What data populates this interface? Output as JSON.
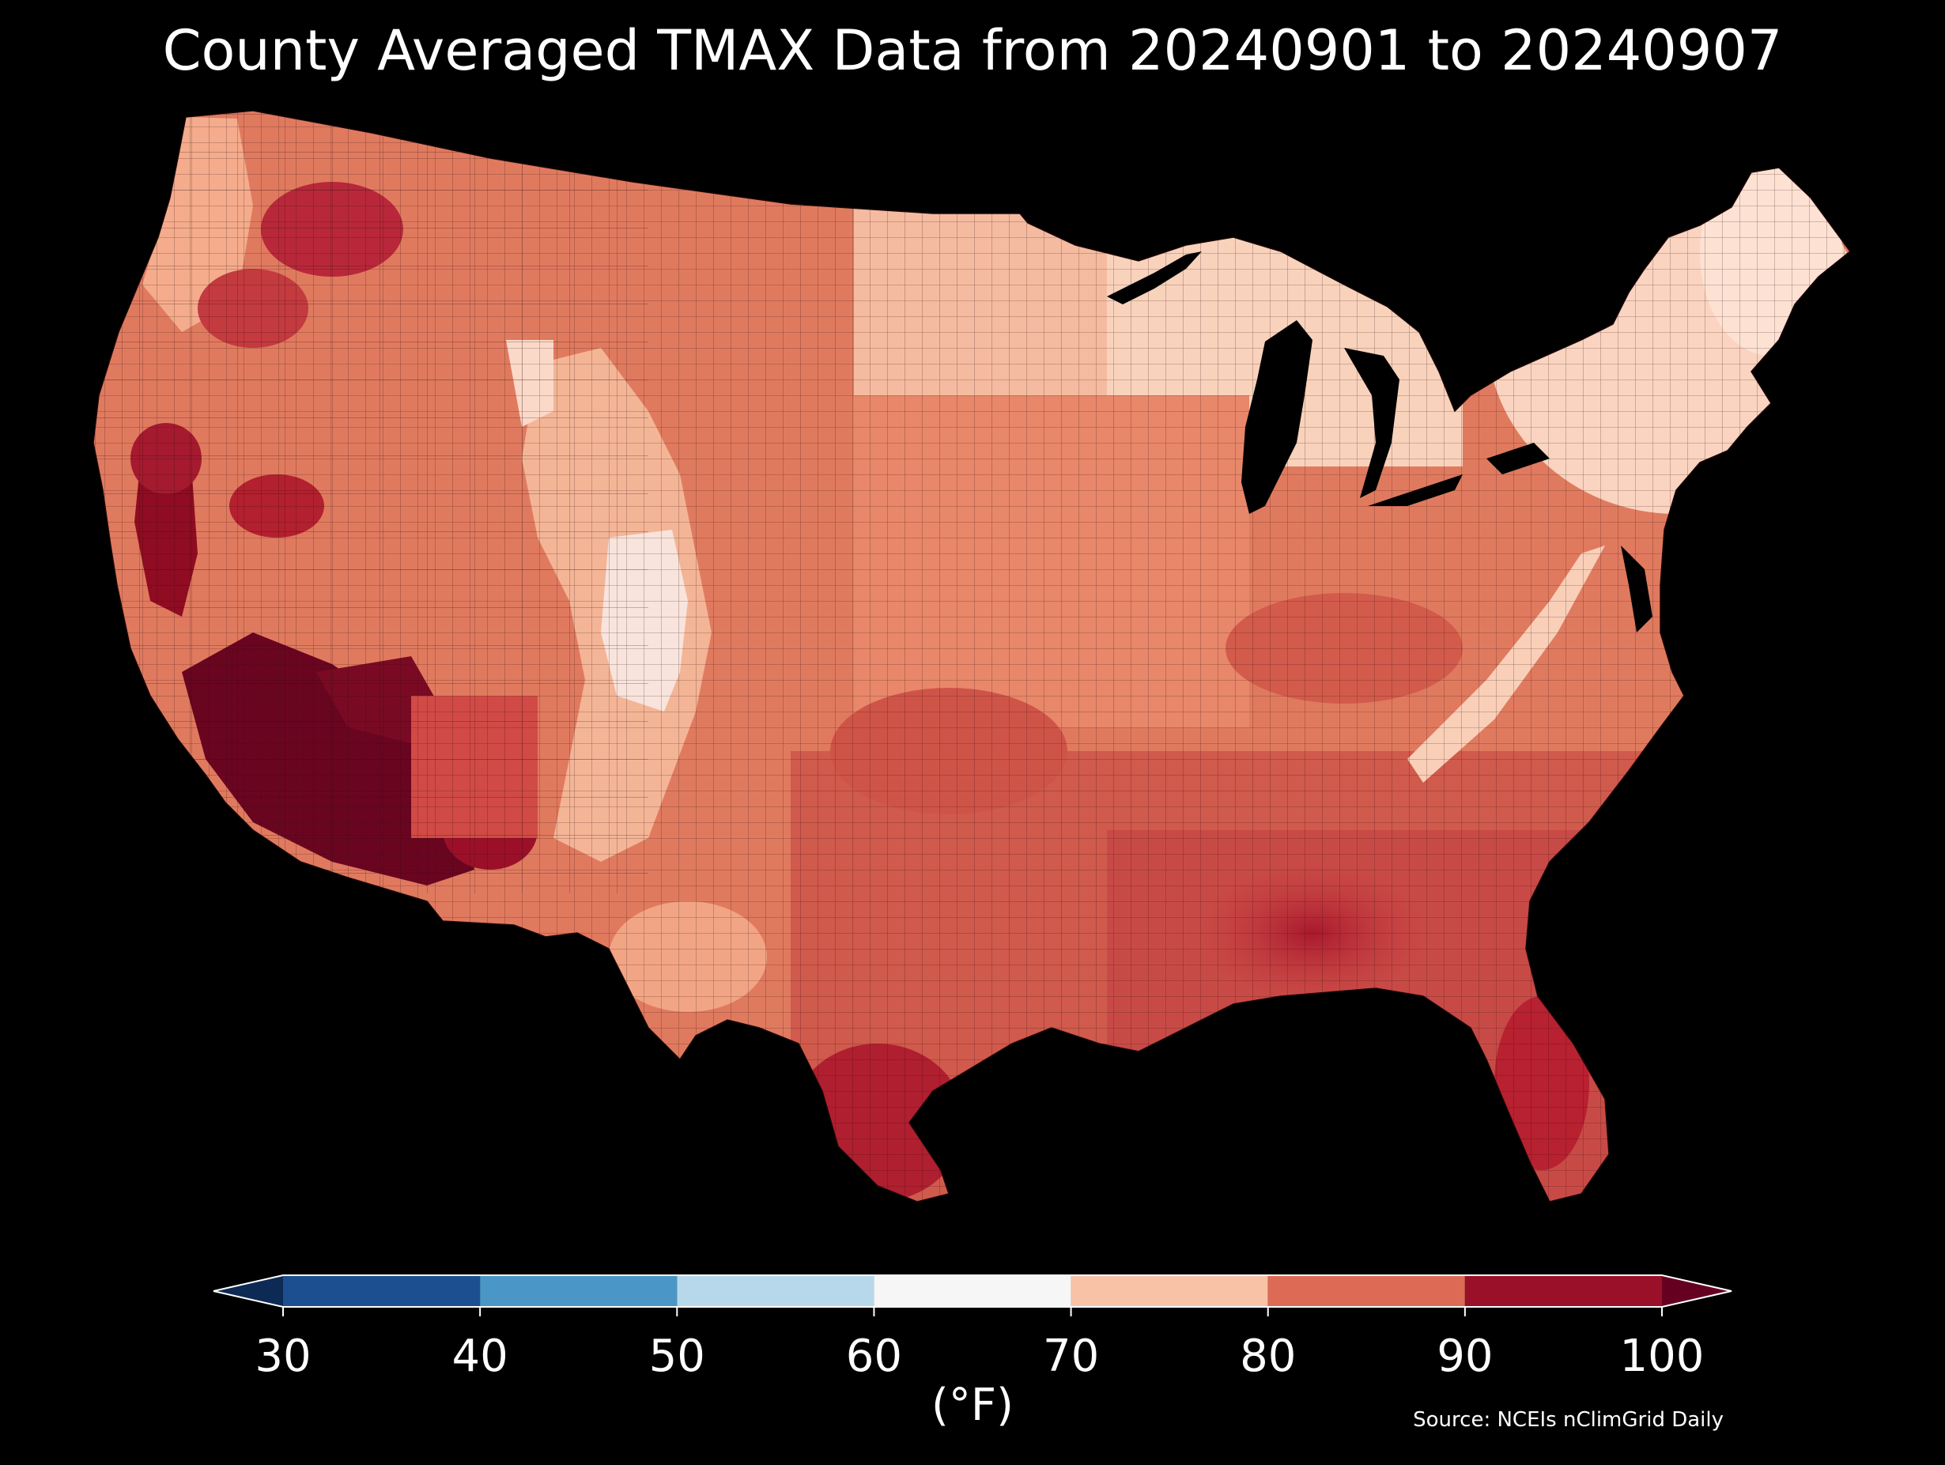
{
  "title": "County Averaged TMAX Data from 20240901 to 20240907",
  "colorbar": {
    "unit_label": "(°F)",
    "ticks": [
      "30",
      "40",
      "50",
      "60",
      "70",
      "80",
      "90",
      "100"
    ],
    "bins": [
      {
        "from": 30,
        "to": 40,
        "color": "#1b4f8f"
      },
      {
        "from": 40,
        "to": 50,
        "color": "#4a96c6"
      },
      {
        "from": 50,
        "to": 60,
        "color": "#b7d8ea"
      },
      {
        "from": 60,
        "to": 70,
        "color": "#f6f6f6"
      },
      {
        "from": 70,
        "to": 80,
        "color": "#f8c2a6"
      },
      {
        "from": 80,
        "to": 90,
        "color": "#dc6a55"
      },
      {
        "from": 90,
        "to": 100,
        "color": "#9a1028"
      }
    ],
    "under_color": "#0d2a55",
    "over_color": "#650021"
  },
  "source": "Source: NCEIs nClimGrid Daily",
  "map": {
    "region": "Contiguous United States",
    "variable": "TMAX",
    "units": "°F",
    "background": "#000000",
    "county_border_color": "#2a0a0a"
  }
}
